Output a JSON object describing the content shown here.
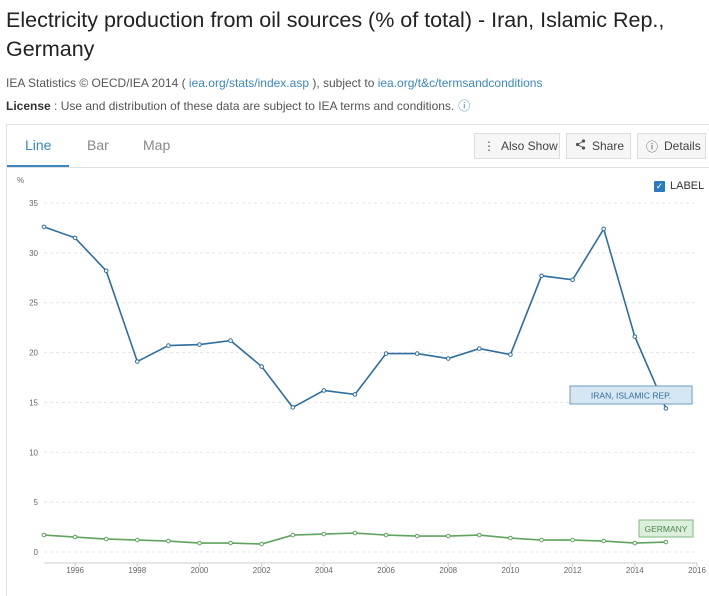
{
  "page": {
    "title": "Electricity production from oil sources (% of total) - Iran, Islamic Rep., Germany",
    "source_prefix": "IEA Statistics © OECD/IEA 2014 ( ",
    "source_link1": "iea.org/stats/index.asp",
    "source_middle": " ), subject to ",
    "source_link2": "iea.org/t&c/termsandconditions",
    "license_label": "License",
    "license_text": " : Use and distribution of these data are subject to IEA terms and conditions.",
    "info_icon": "info-icon"
  },
  "tabs": [
    {
      "label": "Line",
      "active": true
    },
    {
      "label": "Bar",
      "active": false
    },
    {
      "label": "Map",
      "active": false
    }
  ],
  "toolbar": {
    "also_show": "Also Show",
    "share": "Share",
    "details": "Details"
  },
  "label_toggle": {
    "text": "LABEL",
    "checked": true
  },
  "colors": {
    "iran": "#2d6e9e",
    "germany": "#5fa35f",
    "accent": "#3a87c2"
  },
  "chart_data": {
    "type": "line",
    "title": "Electricity production from oil sources (% of total) - Iran, Islamic Rep., Germany",
    "ylabel": "%",
    "xlabel": "",
    "ylim": [
      0,
      35
    ],
    "xlim": [
      1995,
      2016
    ],
    "yticks": [
      0,
      5,
      10,
      15,
      20,
      25,
      30,
      35
    ],
    "xticks": [
      1996,
      1998,
      2000,
      2002,
      2004,
      2006,
      2008,
      2010,
      2012,
      2014,
      2016
    ],
    "grid": true,
    "x": [
      1995,
      1996,
      1997,
      1998,
      1999,
      2000,
      2001,
      2002,
      2003,
      2004,
      2005,
      2006,
      2007,
      2008,
      2009,
      2010,
      2011,
      2012,
      2013,
      2014,
      2015
    ],
    "series": [
      {
        "name": "Iran, Islamic Rep.",
        "label": "IRAN, ISLAMIC REP.",
        "values": [
          32.6,
          31.5,
          28.2,
          19.1,
          20.7,
          20.8,
          21.2,
          18.6,
          14.5,
          16.2,
          15.8,
          19.9,
          19.9,
          19.4,
          20.4,
          19.8,
          27.7,
          27.3,
          32.4,
          21.6,
          14.4
        ]
      },
      {
        "name": "Germany",
        "label": "GERMANY",
        "values": [
          1.7,
          1.5,
          1.3,
          1.2,
          1.1,
          0.9,
          0.9,
          0.8,
          1.7,
          1.8,
          1.9,
          1.7,
          1.6,
          1.6,
          1.7,
          1.4,
          1.2,
          1.2,
          1.1,
          0.9,
          1.0
        ]
      }
    ]
  }
}
